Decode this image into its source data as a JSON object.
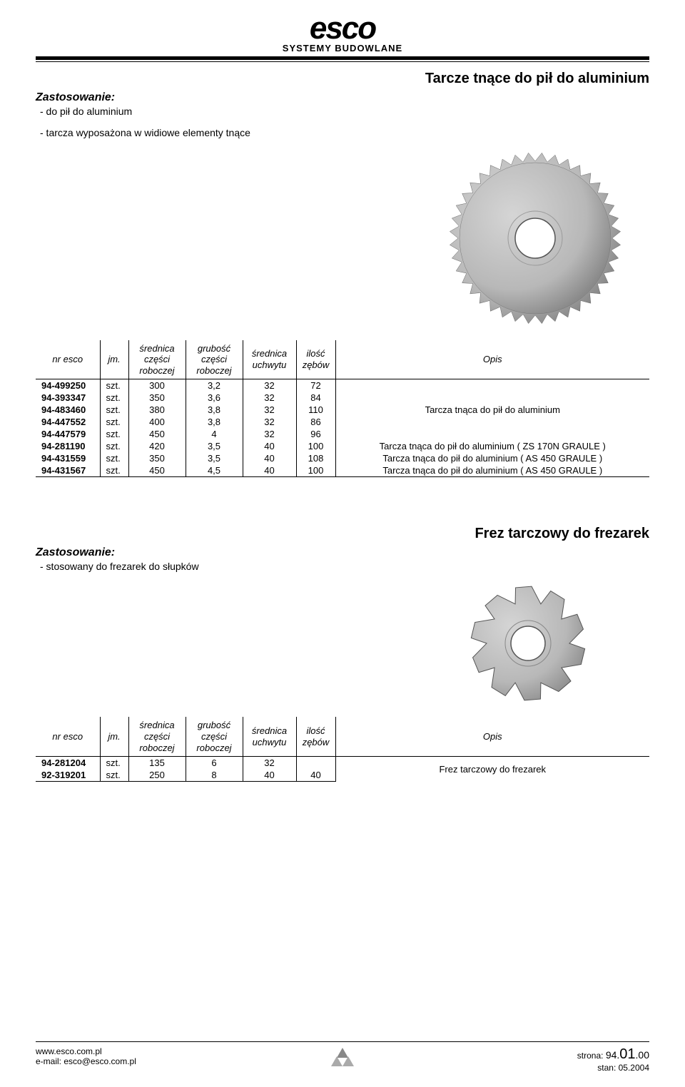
{
  "logo": {
    "main": "esco",
    "sub": "SYSTEMY BUDOWLANE"
  },
  "section1": {
    "title": "Tarcze tnące do pił do aluminium",
    "zast_label": "Zastosowanie:",
    "zast_items": [
      "- do pił do aluminium",
      "- tarcza wyposażona w widiowe elementy tnące"
    ],
    "columns": [
      "nr esco",
      "jm.",
      "średnica części roboczej",
      "grubość części roboczej",
      "średnica uchwytu",
      "ilość zębów",
      "Opis"
    ],
    "rows": [
      {
        "nr": "94-499250",
        "jm": "szt.",
        "d": "300",
        "g": "3,2",
        "u": "32",
        "z": "72",
        "opis": ""
      },
      {
        "nr": "94-393347",
        "jm": "szt.",
        "d": "350",
        "g": "3,6",
        "u": "32",
        "z": "84",
        "opis": ""
      },
      {
        "nr": "94-483460",
        "jm": "szt.",
        "d": "380",
        "g": "3,8",
        "u": "32",
        "z": "110",
        "opis": "Tarcza tnąca do pił do aluminium"
      },
      {
        "nr": "94-447552",
        "jm": "szt.",
        "d": "400",
        "g": "3,8",
        "u": "32",
        "z": "86",
        "opis": ""
      },
      {
        "nr": "94-447579",
        "jm": "szt.",
        "d": "450",
        "g": "4",
        "u": "32",
        "z": "96",
        "opis": ""
      },
      {
        "nr": "94-281190",
        "jm": "szt.",
        "d": "420",
        "g": "3,5",
        "u": "40",
        "z": "100",
        "opis": "Tarcza tnąca do pił do aluminium ( ZS 170N GRAULE )"
      },
      {
        "nr": "94-431559",
        "jm": "szt.",
        "d": "350",
        "g": "3,5",
        "u": "40",
        "z": "108",
        "opis": "Tarcza tnąca do pił do aluminium ( AS 450 GRAULE )"
      },
      {
        "nr": "94-431567",
        "jm": "szt.",
        "d": "450",
        "g": "4,5",
        "u": "40",
        "z": "100",
        "opis": "Tarcza tnąca do pił do aluminium ( AS 450 GRAULE )"
      }
    ]
  },
  "section2": {
    "title": "Frez tarczowy do frezarek",
    "zast_label": "Zastosowanie:",
    "zast_items": [
      "- stosowany do frezarek do słupków"
    ],
    "columns": [
      "nr esco",
      "jm.",
      "średnica części roboczej",
      "grubość części roboczej",
      "średnica uchwytu",
      "ilość zębów",
      "Opis"
    ],
    "rows": [
      {
        "nr": "94-281204",
        "jm": "szt.",
        "d": "135",
        "g": "6",
        "u": "32",
        "z": "",
        "opis": ""
      },
      {
        "nr": "92-319201",
        "jm": "szt.",
        "d": "250",
        "g": "8",
        "u": "40",
        "z": "40",
        "opis": ""
      }
    ],
    "merged_opis": "Frez tarczowy do frezarek"
  },
  "footer": {
    "www": "www.esco.com.pl",
    "email": "e-mail: esco@esco.com.pl",
    "strona_label": "strona: ",
    "strona_a": "94.",
    "strona_b": "01",
    "strona_c": ".00",
    "stan": "stan: 05.2004"
  },
  "image": {
    "saw1_teeth": 40,
    "saw1_outer_r": 120,
    "saw1_inner_r": 28,
    "saw_color": "#b8b8b8",
    "saw_light": "#d5d5d5",
    "saw_dark": "#8a8a8a",
    "saw2_outer_r": 80,
    "saw2_inner_r": 24,
    "saw2_teeth": 10
  }
}
